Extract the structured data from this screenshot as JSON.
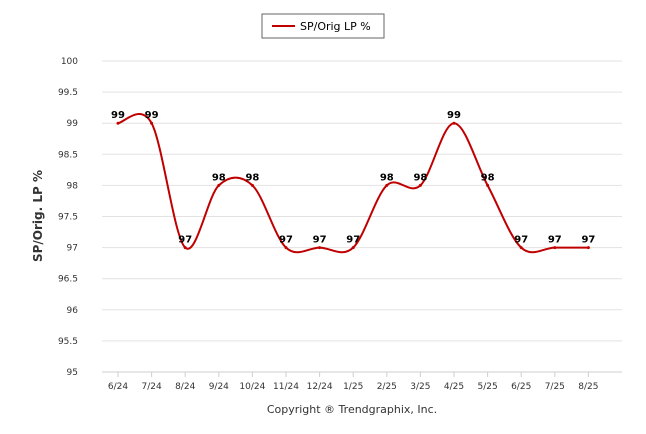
{
  "chart_data": {
    "type": "line",
    "legend": "SP/Orig LP %",
    "ylabel": "SP/Orig. LP %",
    "xlabel": "",
    "footer": "Copyright ® Trendgraphix, Inc.",
    "ylim": [
      95,
      100
    ],
    "yticks": [
      95,
      95.5,
      96,
      96.5,
      97,
      97.5,
      98,
      98.5,
      99,
      99.5,
      100
    ],
    "categories": [
      "6/24",
      "7/24",
      "8/24",
      "9/24",
      "10/24",
      "11/24",
      "12/24",
      "1/25",
      "2/25",
      "3/25",
      "4/25",
      "5/25",
      "6/25",
      "7/25",
      "8/25"
    ],
    "series": [
      {
        "name": "SP/Orig LP %",
        "color": "#c00000",
        "values": [
          99,
          99,
          97,
          98,
          98,
          97,
          97,
          97,
          98,
          98,
          99,
          98,
          97,
          97,
          97
        ]
      }
    ],
    "grid": "horizontal",
    "legend_position": "top-center"
  }
}
